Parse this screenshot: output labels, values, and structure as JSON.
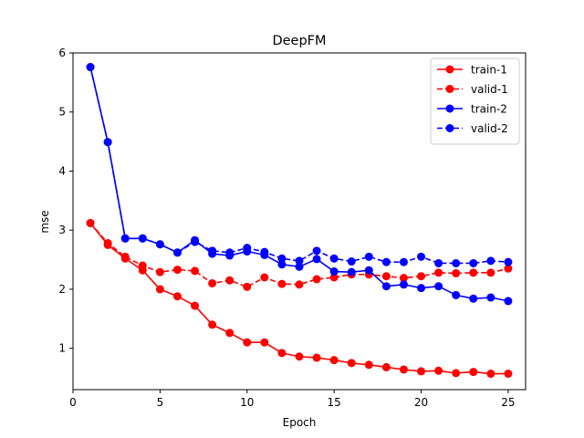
{
  "chart_data": {
    "type": "line",
    "title": "DeepFM",
    "xlabel": "Epoch",
    "ylabel": "mse",
    "xlim": [
      0,
      26
    ],
    "ylim": [
      0.3,
      6.0
    ],
    "xticks": [
      0,
      5,
      10,
      15,
      20,
      25
    ],
    "yticks": [
      1,
      2,
      3,
      4,
      5,
      6
    ],
    "grid": false,
    "legend_position": "upper right",
    "x": [
      1,
      2,
      3,
      4,
      5,
      6,
      7,
      8,
      9,
      10,
      11,
      12,
      13,
      14,
      15,
      16,
      17,
      18,
      19,
      20,
      21,
      22,
      23,
      24,
      25
    ],
    "series": [
      {
        "name": "train-1",
        "color": "#ff0000",
        "linestyle": "solid",
        "marker": "circle",
        "values": [
          3.12,
          2.75,
          2.52,
          2.32,
          2.0,
          1.88,
          1.72,
          1.4,
          1.26,
          1.1,
          1.1,
          0.92,
          0.86,
          0.84,
          0.8,
          0.75,
          0.72,
          0.68,
          0.64,
          0.61,
          0.62,
          0.58,
          0.6,
          0.57,
          0.57
        ]
      },
      {
        "name": "valid-1",
        "color": "#ff0000",
        "linestyle": "dashed",
        "marker": "circle",
        "values": [
          3.12,
          2.78,
          2.55,
          2.4,
          2.29,
          2.33,
          2.31,
          2.1,
          2.15,
          2.04,
          2.2,
          2.09,
          2.08,
          2.17,
          2.2,
          2.25,
          2.25,
          2.22,
          2.19,
          2.22,
          2.28,
          2.27,
          2.28,
          2.28,
          2.35
        ]
      },
      {
        "name": "train-2",
        "color": "#0000ff",
        "linestyle": "solid",
        "marker": "circle",
        "values": [
          5.76,
          4.49,
          2.86,
          2.86,
          2.76,
          2.62,
          2.83,
          2.6,
          2.57,
          2.64,
          2.58,
          2.42,
          2.38,
          2.51,
          2.3,
          2.29,
          2.32,
          2.05,
          2.08,
          2.02,
          2.05,
          1.9,
          1.84,
          1.86,
          1.8
        ]
      },
      {
        "name": "valid-2",
        "color": "#0000ff",
        "linestyle": "dashed",
        "marker": "circle",
        "values": [
          5.76,
          4.49,
          2.86,
          2.86,
          2.76,
          2.62,
          2.8,
          2.65,
          2.62,
          2.7,
          2.63,
          2.52,
          2.48,
          2.65,
          2.52,
          2.47,
          2.55,
          2.46,
          2.46,
          2.55,
          2.44,
          2.44,
          2.44,
          2.48,
          2.46
        ]
      }
    ]
  }
}
